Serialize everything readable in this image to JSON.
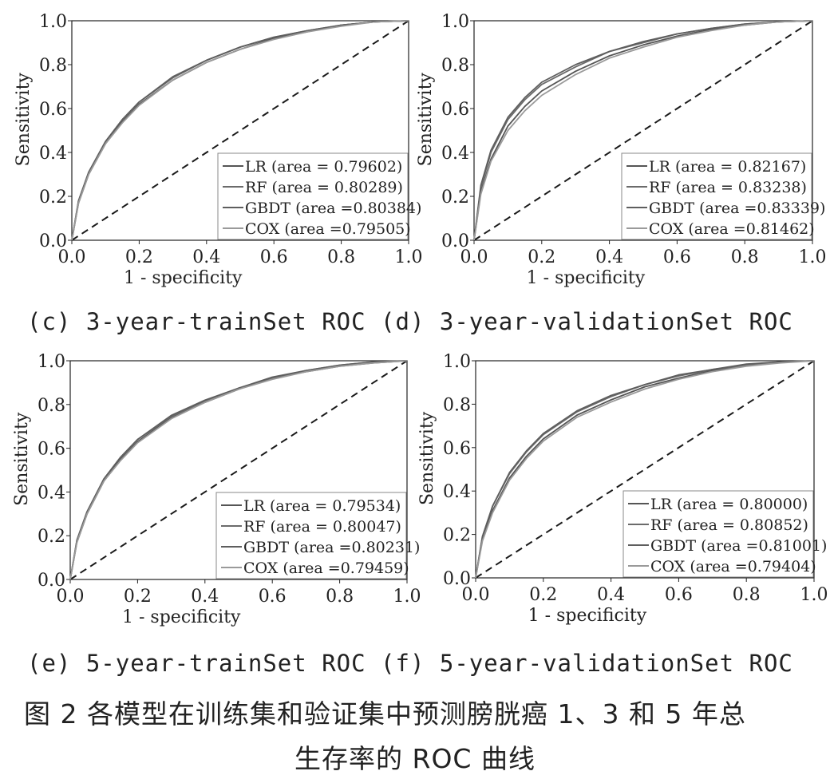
{
  "figure": {
    "subcaptions_row1": "(c) 3-year-trainSet ROC (d) 3-year-validationSet ROC",
    "subcaptions_row2": "(e) 5-year-trainSet ROC (f) 5-year-validationSet ROC",
    "title_line1": "图 2   各模型在训练集和验证集中预测膀胱癌 1、3 和 5 年总",
    "title_line2": "生存率的 ROC 曲线"
  },
  "colors": {
    "LR": "#555555",
    "RF": "#6b6b6b",
    "GBDT": "#5e5e5e",
    "COX": "#9a9a9a",
    "diagonal": "#1a1a1a",
    "axis": "#222222"
  },
  "chart_data": [
    {
      "type": "line",
      "panel": "c",
      "xlabel": "1 - specificity",
      "ylabel": "Sensitivity",
      "xlim": [
        0,
        1
      ],
      "ylim": [
        0,
        1
      ],
      "xticks": [
        "0.0",
        "0.2",
        "0.4",
        "0.6",
        "0.8",
        "1.0"
      ],
      "yticks": [
        "0.0",
        "0.2",
        "0.4",
        "0.6",
        "0.8",
        "1.0"
      ],
      "grid": false,
      "legend_position": "bottom-right",
      "diagonal": true,
      "x": [
        0,
        0.02,
        0.05,
        0.1,
        0.15,
        0.2,
        0.3,
        0.4,
        0.5,
        0.6,
        0.7,
        0.8,
        0.9,
        1.0
      ],
      "series": [
        {
          "name": "LR (area = 0.79602)",
          "values": [
            0,
            0.17,
            0.3,
            0.44,
            0.54,
            0.62,
            0.73,
            0.81,
            0.87,
            0.92,
            0.95,
            0.98,
            0.995,
            1.0
          ]
        },
        {
          "name": "RF (area = 0.80289)",
          "values": [
            0,
            0.18,
            0.31,
            0.45,
            0.55,
            0.63,
            0.74,
            0.82,
            0.88,
            0.925,
            0.955,
            0.98,
            0.995,
            1.0
          ]
        },
        {
          "name": "GBDT (area =0.80384)",
          "values": [
            0,
            0.18,
            0.31,
            0.45,
            0.55,
            0.63,
            0.745,
            0.82,
            0.88,
            0.925,
            0.955,
            0.98,
            0.995,
            1.0
          ]
        },
        {
          "name": "COX (area =0.79505)",
          "values": [
            0,
            0.17,
            0.3,
            0.44,
            0.535,
            0.615,
            0.73,
            0.81,
            0.87,
            0.915,
            0.95,
            0.975,
            0.995,
            1.0
          ]
        }
      ]
    },
    {
      "type": "line",
      "panel": "d",
      "xlabel": "1 - specificity",
      "ylabel": "Sensitivity",
      "xlim": [
        0,
        1
      ],
      "ylim": [
        0,
        1
      ],
      "xticks": [
        "0.0",
        "0.2",
        "0.4",
        "0.6",
        "0.8",
        "1.0"
      ],
      "yticks": [
        "0.0",
        "0.2",
        "0.4",
        "0.6",
        "0.8",
        "1.0"
      ],
      "grid": false,
      "legend_position": "bottom-right",
      "diagonal": true,
      "x": [
        0,
        0.02,
        0.05,
        0.1,
        0.15,
        0.2,
        0.3,
        0.4,
        0.5,
        0.6,
        0.7,
        0.8,
        0.9,
        1.0
      ],
      "series": [
        {
          "name": "LR (area = 0.82167)",
          "values": [
            0,
            0.22,
            0.37,
            0.52,
            0.61,
            0.68,
            0.77,
            0.84,
            0.89,
            0.93,
            0.96,
            0.98,
            0.995,
            1.0
          ]
        },
        {
          "name": "RF (area = 0.83238)",
          "values": [
            0,
            0.24,
            0.4,
            0.55,
            0.64,
            0.71,
            0.79,
            0.86,
            0.9,
            0.94,
            0.965,
            0.985,
            0.995,
            1.0
          ]
        },
        {
          "name": "GBDT (area =0.83339)",
          "values": [
            0,
            0.25,
            0.41,
            0.56,
            0.65,
            0.72,
            0.8,
            0.86,
            0.905,
            0.94,
            0.965,
            0.985,
            0.995,
            1.0
          ]
        },
        {
          "name": "COX (area =0.81462)",
          "values": [
            0,
            0.21,
            0.36,
            0.5,
            0.59,
            0.66,
            0.755,
            0.83,
            0.88,
            0.925,
            0.955,
            0.98,
            0.995,
            1.0
          ]
        }
      ]
    },
    {
      "type": "line",
      "panel": "e",
      "xlabel": "1 - specificity",
      "ylabel": "Sensitivity",
      "xlim": [
        0,
        1
      ],
      "ylim": [
        0,
        1
      ],
      "xticks": [
        "0.0",
        "0.2",
        "0.4",
        "0.6",
        "0.8",
        "1.0"
      ],
      "yticks": [
        "0.0",
        "0.2",
        "0.4",
        "0.6",
        "0.8",
        "1.0"
      ],
      "grid": false,
      "legend_position": "bottom-right",
      "diagonal": true,
      "x": [
        0,
        0.02,
        0.05,
        0.1,
        0.15,
        0.2,
        0.3,
        0.4,
        0.5,
        0.6,
        0.7,
        0.8,
        0.9,
        1.0
      ],
      "series": [
        {
          "name": "LR (area = 0.79534)",
          "values": [
            0,
            0.17,
            0.3,
            0.45,
            0.55,
            0.63,
            0.74,
            0.81,
            0.87,
            0.92,
            0.95,
            0.975,
            0.99,
            1.0
          ]
        },
        {
          "name": "RF (area = 0.80047)",
          "values": [
            0,
            0.18,
            0.31,
            0.46,
            0.56,
            0.64,
            0.745,
            0.815,
            0.875,
            0.92,
            0.955,
            0.98,
            0.995,
            1.0
          ]
        },
        {
          "name": "GBDT (area =0.80231)",
          "values": [
            0,
            0.18,
            0.31,
            0.46,
            0.56,
            0.64,
            0.75,
            0.82,
            0.875,
            0.925,
            0.955,
            0.98,
            0.995,
            1.0
          ]
        },
        {
          "name": "COX (area =0.79459)",
          "values": [
            0,
            0.17,
            0.3,
            0.45,
            0.545,
            0.625,
            0.735,
            0.81,
            0.87,
            0.915,
            0.95,
            0.975,
            0.99,
            1.0
          ]
        }
      ]
    },
    {
      "type": "line",
      "panel": "f",
      "xlabel": "1 - specificity",
      "ylabel": "Sensitivity",
      "xlim": [
        0,
        1
      ],
      "ylim": [
        0,
        1
      ],
      "xticks": [
        "0.0",
        "0.2",
        "0.4",
        "0.6",
        "0.8",
        "1.0"
      ],
      "yticks": [
        "0.0",
        "0.2",
        "0.4",
        "0.6",
        "0.8",
        "1.0"
      ],
      "grid": false,
      "legend_position": "bottom-right",
      "diagonal": true,
      "x": [
        0,
        0.02,
        0.05,
        0.1,
        0.15,
        0.2,
        0.3,
        0.4,
        0.5,
        0.6,
        0.7,
        0.8,
        0.9,
        1.0
      ],
      "series": [
        {
          "name": "LR (area = 0.80000)",
          "values": [
            0,
            0.18,
            0.31,
            0.46,
            0.56,
            0.64,
            0.75,
            0.82,
            0.88,
            0.92,
            0.955,
            0.98,
            0.995,
            1.0
          ]
        },
        {
          "name": "RF (area = 0.80852)",
          "values": [
            0,
            0.19,
            0.33,
            0.48,
            0.58,
            0.66,
            0.765,
            0.835,
            0.89,
            0.93,
            0.96,
            0.98,
            0.995,
            1.0
          ]
        },
        {
          "name": "GBDT (area =0.81001)",
          "values": [
            0,
            0.19,
            0.33,
            0.485,
            0.585,
            0.665,
            0.77,
            0.84,
            0.89,
            0.935,
            0.96,
            0.985,
            0.995,
            1.0
          ]
        },
        {
          "name": "COX (area =0.79404)",
          "values": [
            0,
            0.17,
            0.3,
            0.45,
            0.55,
            0.63,
            0.74,
            0.81,
            0.87,
            0.915,
            0.95,
            0.975,
            0.99,
            1.0
          ]
        }
      ]
    }
  ]
}
